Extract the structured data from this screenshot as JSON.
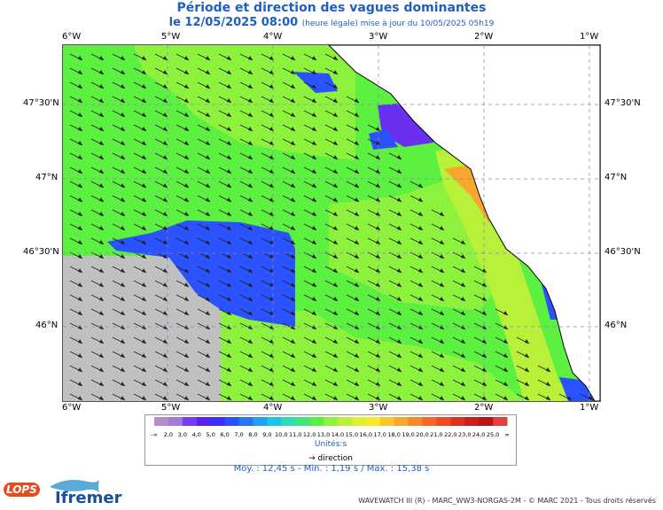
{
  "title": "Période et direction des vagues dominantes",
  "subtitle_main": "le 12/05/2025 08:00",
  "subtitle_small": "(heure légale) mise à jour du 10/05/2025 05h19",
  "lon_ticks": [
    "6°W",
    "5°W",
    "4°W",
    "3°W",
    "2°W",
    "1°W"
  ],
  "lat_ticks": [
    "47°30'N",
    "47°N",
    "46°30'N",
    "46°N"
  ],
  "colorbar": {
    "labels": [
      "-∞",
      "2,0",
      "3,0",
      "4,0",
      "5,0",
      "6,0",
      "7,0",
      "8,0",
      "9,0",
      "10,0",
      "11,0",
      "12,0",
      "13,0",
      "14,0",
      "15,0",
      "16,0",
      "17,0",
      "18,0",
      "19,0",
      "20,0",
      "21,0",
      "22,0",
      "23,0",
      "24,0",
      "25,0",
      "∞"
    ],
    "colors": [
      "#b58cc8",
      "#a27ad8",
      "#7a3cf0",
      "#5a24f0",
      "#3a30ff",
      "#2a52ff",
      "#2877f7",
      "#1fa0f0",
      "#18c5e8",
      "#2fdcb8",
      "#3ce67a",
      "#58f044",
      "#8cf23e",
      "#b8f03a",
      "#e0f02e",
      "#f8e82a",
      "#f8c82a",
      "#f8a62c",
      "#f8862a",
      "#f66626",
      "#f04a22",
      "#e0301e",
      "#cc1e1a",
      "#b81616",
      "#e04040"
    ],
    "unit": "Unités"
  },
  "legend_direction": "direction",
  "stats": "Moy. : 12,45 s   -   Min. : 1,19 s / Max. : 15,38 s",
  "footer": "WAVEWATCH III (R) - MARC_WW3-NORGAS-2M - © MARC 2021 - Tous droits réservés",
  "logos": {
    "lops": "LOPS",
    "ifremer": "Ifremer"
  },
  "map_colors": {
    "land": "#ffffff",
    "nodata": "#c0c0c0",
    "sea_green": "#5cf040",
    "sea_light": "#8cf23e",
    "sea_yellow": "#b8f03a",
    "sea_blue": "#2a52ff",
    "sea_purple": "#6a30f0"
  }
}
